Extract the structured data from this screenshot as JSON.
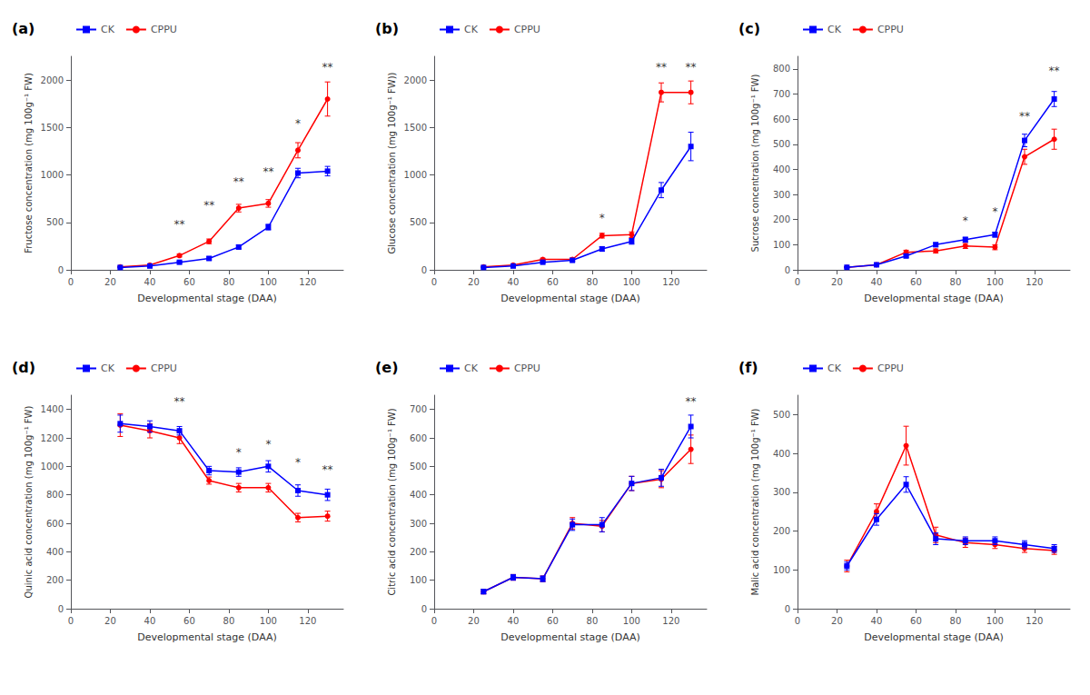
{
  "chart_data": [
    {
      "type": "line",
      "title": "(a)",
      "xlabel": "Developmental stage (DAA)",
      "ylabel": "Fructose concentration (mg 100g⁻¹ FW)",
      "x": [
        25,
        40,
        55,
        70,
        85,
        100,
        115,
        130
      ],
      "series": [
        {
          "name": "CK",
          "color": "#0000ff",
          "marker": "square",
          "line_style": "solid",
          "values": [
            25,
            40,
            80,
            120,
            240,
            450,
            1020,
            1040
          ],
          "errors": [
            5,
            5,
            10,
            15,
            20,
            30,
            50,
            50
          ]
        },
        {
          "name": "CPPU",
          "color": "#ff0000",
          "marker": "circle",
          "line_style": "solid",
          "values": [
            30,
            50,
            150,
            300,
            650,
            700,
            1260,
            1800
          ],
          "errors": [
            5,
            8,
            15,
            25,
            40,
            40,
            80,
            180
          ]
        }
      ],
      "annotations": [
        {
          "x": 55,
          "y": 420,
          "text": "**"
        },
        {
          "x": 70,
          "y": 620,
          "text": "**"
        },
        {
          "x": 85,
          "y": 870,
          "text": "**"
        },
        {
          "x": 100,
          "y": 980,
          "text": "**"
        },
        {
          "x": 115,
          "y": 1480,
          "text": "*"
        },
        {
          "x": 130,
          "y": 2080,
          "text": "**"
        }
      ],
      "xlim": [
        0,
        138
      ],
      "xticks": [
        0,
        20,
        40,
        60,
        80,
        100,
        120
      ],
      "ylim": [
        0,
        2250
      ],
      "yticks": [
        0,
        500,
        1000,
        1500,
        2000
      ],
      "legend": "upper left",
      "grid": false
    },
    {
      "type": "line",
      "title": "(b)",
      "xlabel": "Developmental stage (DAA)",
      "ylabel": "Glucose concentration (mg 100g⁻¹ FW))",
      "x": [
        25,
        40,
        55,
        70,
        85,
        100,
        115,
        130
      ],
      "series": [
        {
          "name": "CK",
          "color": "#0000ff",
          "marker": "square",
          "line_style": "solid",
          "values": [
            25,
            40,
            80,
            100,
            220,
            300,
            840,
            1300
          ],
          "errors": [
            5,
            5,
            10,
            12,
            25,
            30,
            80,
            150
          ]
        },
        {
          "name": "CPPU",
          "color": "#ff0000",
          "marker": "circle",
          "line_style": "solid",
          "values": [
            30,
            50,
            110,
            110,
            360,
            370,
            1870,
            1870
          ],
          "errors": [
            5,
            8,
            12,
            15,
            25,
            30,
            100,
            120
          ]
        }
      ],
      "annotations": [
        {
          "x": 85,
          "y": 490,
          "text": "*"
        },
        {
          "x": 115,
          "y": 2080,
          "text": "**"
        },
        {
          "x": 130,
          "y": 2080,
          "text": "**"
        }
      ],
      "xlim": [
        0,
        138
      ],
      "xticks": [
        0,
        20,
        40,
        60,
        80,
        100,
        120
      ],
      "ylim": [
        0,
        2250
      ],
      "yticks": [
        0,
        500,
        1000,
        1500,
        2000
      ],
      "legend": "upper left",
      "grid": false
    },
    {
      "type": "line",
      "title": "(c)",
      "xlabel": "Developmental stage (DAA)",
      "ylabel": "Sucrose concentration (mg 100g⁻¹ FW)",
      "x": [
        25,
        40,
        55,
        70,
        85,
        100,
        115,
        130
      ],
      "series": [
        {
          "name": "CK",
          "color": "#0000ff",
          "marker": "square",
          "line_style": "solid",
          "values": [
            10,
            20,
            55,
            100,
            120,
            140,
            515,
            680
          ],
          "errors": [
            2,
            3,
            5,
            8,
            10,
            10,
            25,
            30
          ]
        },
        {
          "name": "CPPU",
          "color": "#ff0000",
          "marker": "circle",
          "line_style": "solid",
          "values": [
            10,
            20,
            70,
            75,
            95,
            90,
            450,
            520
          ],
          "errors": [
            2,
            3,
            8,
            8,
            10,
            10,
            30,
            40
          ]
        }
      ],
      "annotations": [
        {
          "x": 85,
          "y": 175,
          "text": "*"
        },
        {
          "x": 100,
          "y": 210,
          "text": "*"
        },
        {
          "x": 115,
          "y": 590,
          "text": "**"
        },
        {
          "x": 130,
          "y": 770,
          "text": "**"
        }
      ],
      "xlim": [
        0,
        138
      ],
      "xticks": [
        0,
        20,
        40,
        60,
        80,
        100,
        120
      ],
      "ylim": [
        0,
        850
      ],
      "yticks": [
        0,
        100,
        200,
        300,
        400,
        500,
        600,
        700,
        800
      ],
      "legend": "upper left",
      "grid": false
    },
    {
      "type": "line",
      "title": "(d)",
      "xlabel": "Developmental stage (DAA)",
      "ylabel": "Quinic acid concentration (mg 100g⁻¹ FW)",
      "x": [
        25,
        40,
        55,
        70,
        85,
        100,
        115,
        130
      ],
      "series": [
        {
          "name": "CK",
          "color": "#0000ff",
          "marker": "square",
          "line_style": "solid",
          "values": [
            1300,
            1280,
            1250,
            970,
            960,
            1000,
            830,
            800
          ],
          "errors": [
            60,
            40,
            30,
            30,
            30,
            40,
            40,
            40
          ]
        },
        {
          "name": "CPPU",
          "color": "#ff0000",
          "marker": "circle",
          "line_style": "solid",
          "values": [
            1290,
            1250,
            1200,
            900,
            850,
            850,
            640,
            650
          ],
          "errors": [
            80,
            50,
            40,
            25,
            30,
            30,
            30,
            35
          ]
        }
      ],
      "annotations": [
        {
          "x": 55,
          "y": 1420,
          "text": "**"
        },
        {
          "x": 85,
          "y": 1060,
          "text": "*"
        },
        {
          "x": 100,
          "y": 1120,
          "text": "*"
        },
        {
          "x": 115,
          "y": 990,
          "text": "*"
        },
        {
          "x": 130,
          "y": 940,
          "text": "**"
        }
      ],
      "xlim": [
        0,
        138
      ],
      "xticks": [
        0,
        20,
        40,
        60,
        80,
        100,
        120
      ],
      "ylim": [
        0,
        1500
      ],
      "yticks": [
        0,
        200,
        400,
        600,
        800,
        1000,
        1200,
        1400
      ],
      "legend": "upper left",
      "grid": false
    },
    {
      "type": "line",
      "title": "(e)",
      "xlabel": "Developmental stage (DAA)",
      "ylabel": "Citric acid concentration (mg 100g⁻¹ FW)",
      "x": [
        25,
        40,
        55,
        70,
        85,
        100,
        115,
        130
      ],
      "series": [
        {
          "name": "CK",
          "color": "#0000ff",
          "marker": "square",
          "line_style": "solid",
          "values": [
            60,
            110,
            105,
            295,
            295,
            440,
            460,
            640
          ],
          "errors": [
            8,
            10,
            10,
            20,
            25,
            25,
            30,
            40
          ]
        },
        {
          "name": "CPPU",
          "color": "#ff0000",
          "marker": "circle",
          "line_style": "solid",
          "values": [
            60,
            110,
            105,
            300,
            290,
            440,
            455,
            560
          ],
          "errors": [
            8,
            10,
            10,
            20,
            20,
            25,
            30,
            50
          ]
        }
      ],
      "annotations": [
        {
          "x": 130,
          "y": 710,
          "text": "**"
        }
      ],
      "xlim": [
        0,
        138
      ],
      "xticks": [
        0,
        20,
        40,
        60,
        80,
        100,
        120
      ],
      "ylim": [
        0,
        750
      ],
      "yticks": [
        0,
        100,
        200,
        300,
        400,
        500,
        600,
        700
      ],
      "legend": "upper left",
      "grid": false
    },
    {
      "type": "line",
      "title": "(f)",
      "xlabel": "Developmental stage (DAA)",
      "ylabel": "Malic acid concentration (mg 100g⁻¹ FW)",
      "x": [
        25,
        40,
        55,
        70,
        85,
        100,
        115,
        130
      ],
      "series": [
        {
          "name": "CK",
          "color": "#0000ff",
          "marker": "square",
          "line_style": "solid",
          "values": [
            110,
            230,
            320,
            180,
            175,
            175,
            165,
            155
          ],
          "errors": [
            10,
            15,
            20,
            15,
            10,
            10,
            10,
            10
          ]
        },
        {
          "name": "CPPU",
          "color": "#ff0000",
          "marker": "circle",
          "line_style": "solid",
          "values": [
            110,
            250,
            420,
            190,
            170,
            165,
            155,
            150
          ],
          "errors": [
            15,
            20,
            50,
            20,
            12,
            10,
            10,
            10
          ]
        }
      ],
      "xlim": [
        0,
        138
      ],
      "xticks": [
        0,
        20,
        40,
        60,
        80,
        100,
        120
      ],
      "ylim": [
        0,
        550
      ],
      "yticks": [
        0,
        100,
        200,
        300,
        400,
        500
      ],
      "legend": "upper left",
      "grid": false
    }
  ]
}
